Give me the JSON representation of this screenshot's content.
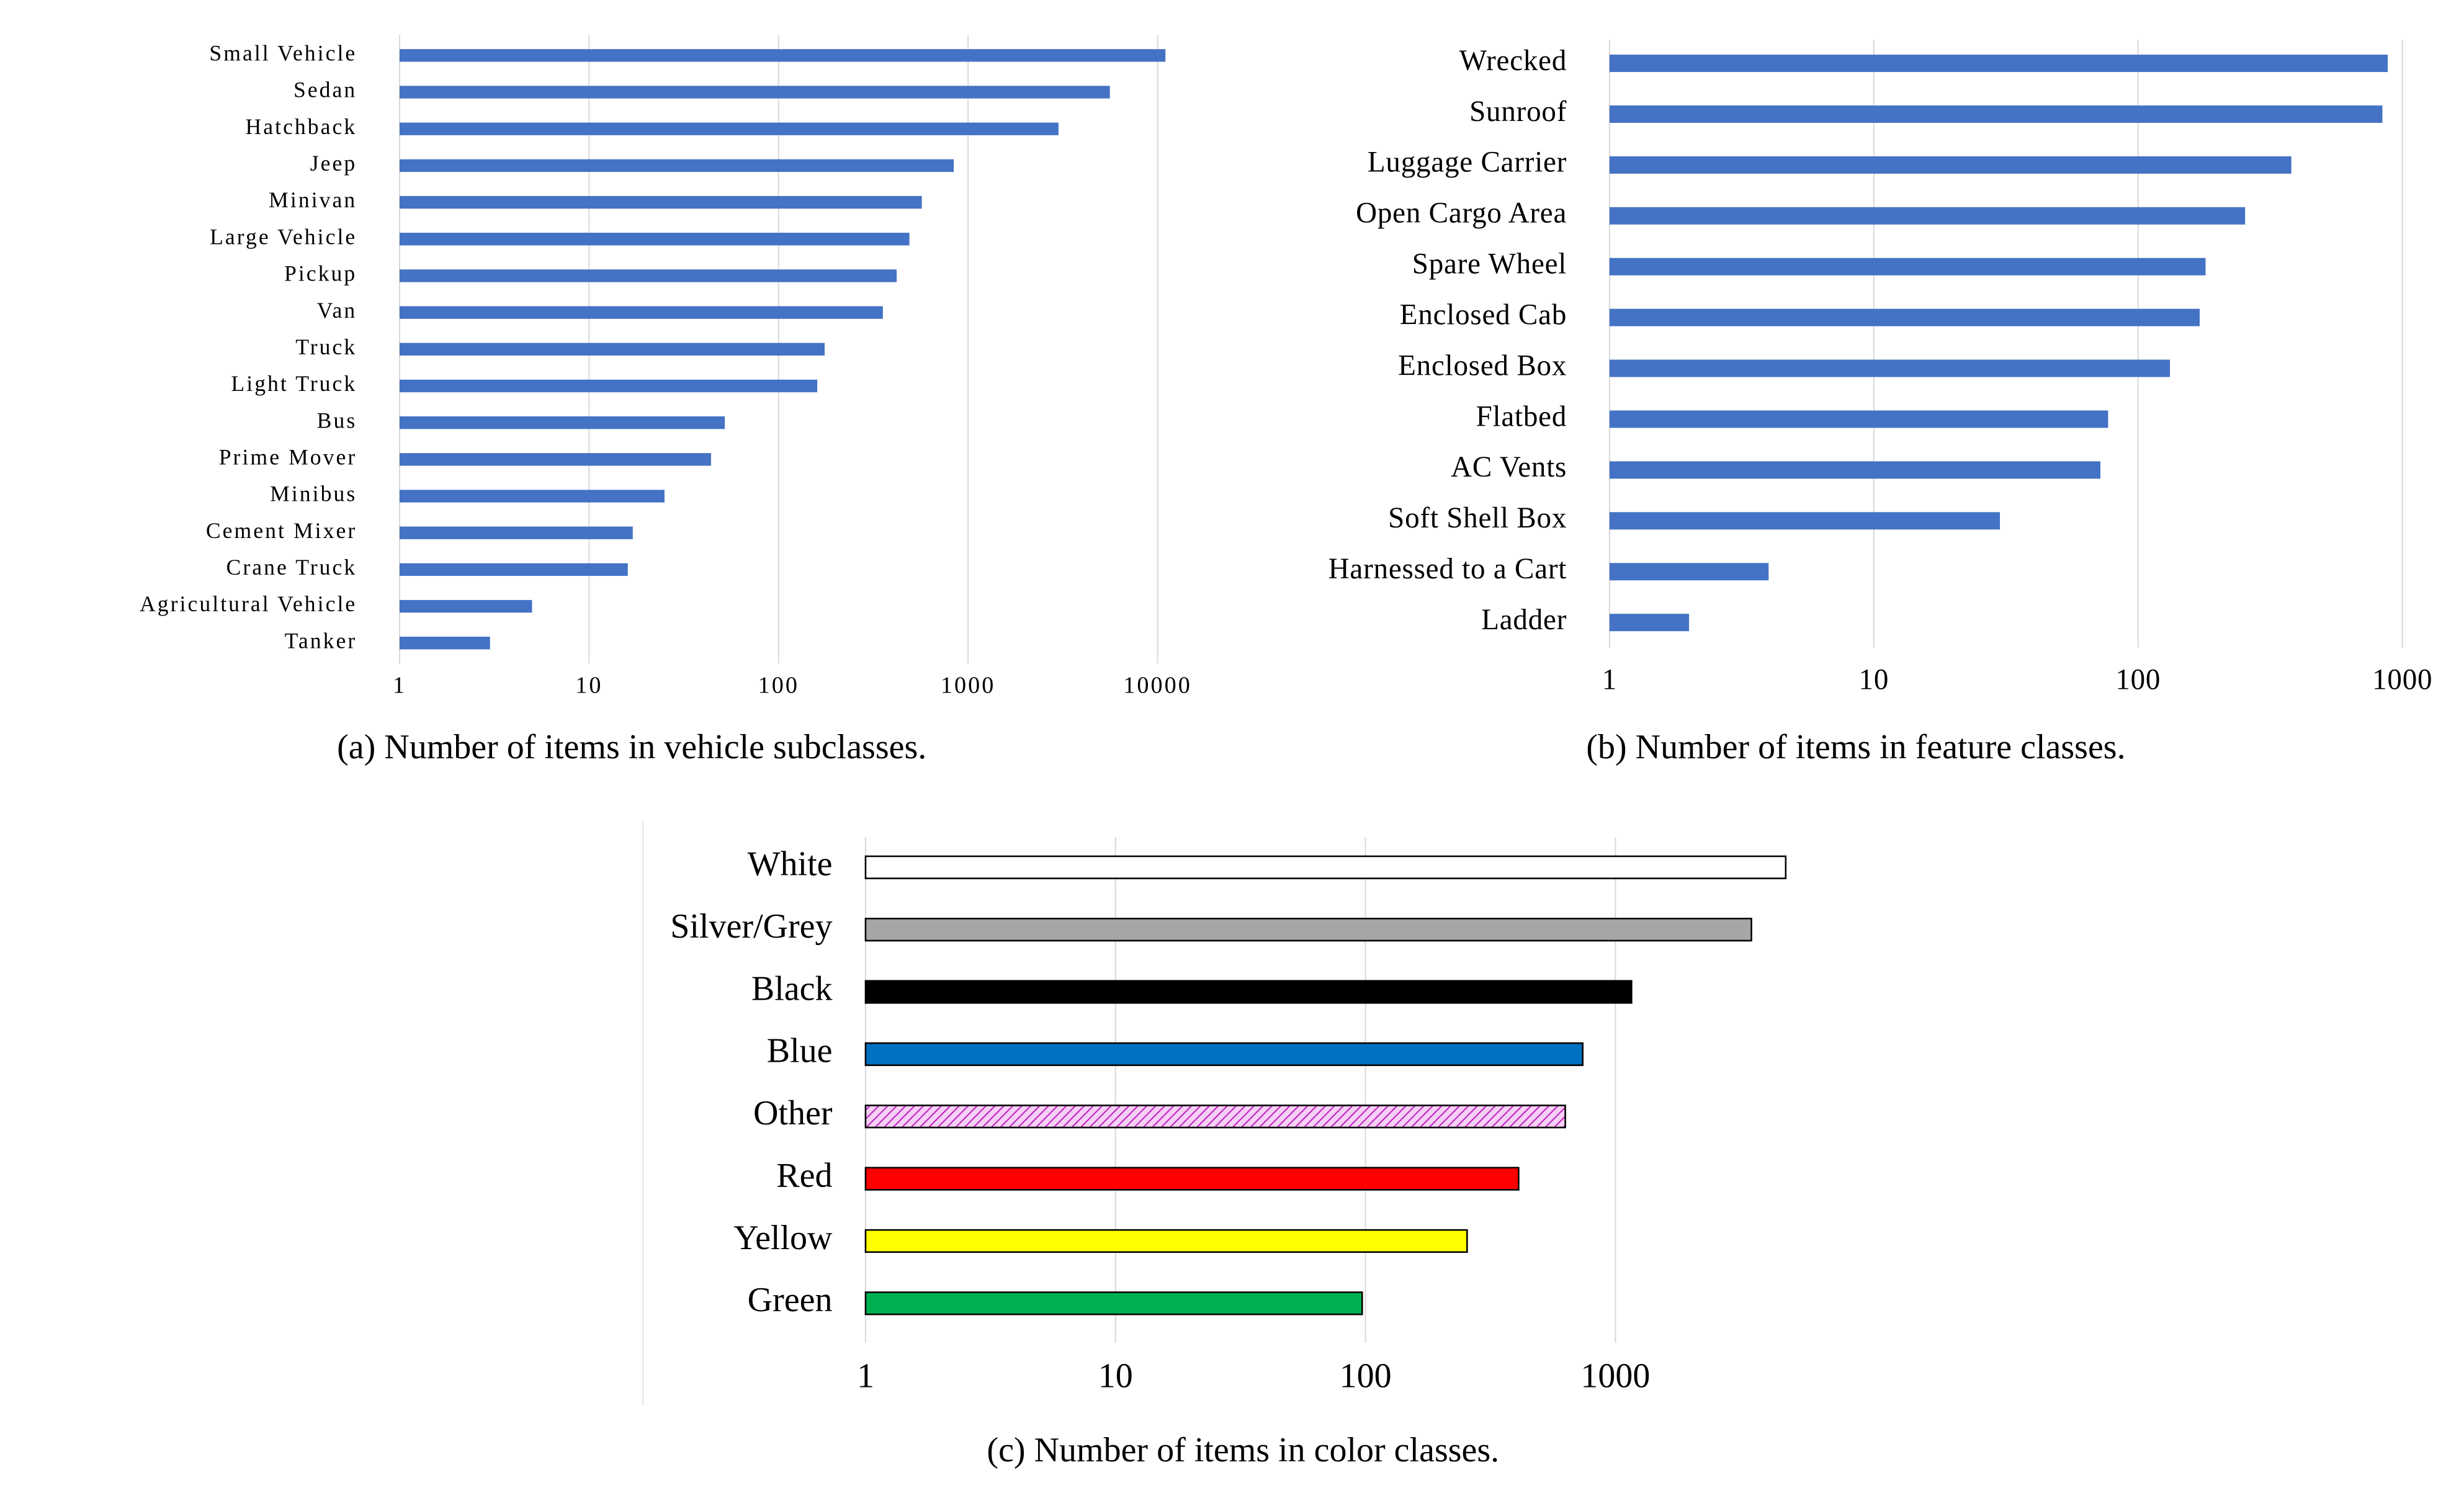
{
  "chart_data": [
    {
      "type": "bar",
      "orientation": "horizontal",
      "xscale": "log",
      "grid": true,
      "caption": "(a) Number of items in vehicle subclasses.",
      "categories": [
        "Small Vehicle",
        "Sedan",
        "Hatchback",
        "Jeep",
        "Minivan",
        "Large Vehicle",
        "Pickup",
        "Van",
        "Truck",
        "Light Truck",
        "Bus",
        "Prime Mover",
        "Minibus",
        "Cement Mixer",
        "Crane Truck",
        "Agricultural Vehicle",
        "Tanker"
      ],
      "values": [
        11000,
        5600,
        3000,
        840,
        570,
        490,
        420,
        355,
        175,
        160,
        52,
        44,
        25,
        17,
        16,
        5,
        3
      ],
      "color": "#4472c4",
      "xlim": [
        1,
        20000
      ],
      "xticks": [
        1,
        10,
        100,
        1000,
        10000
      ]
    },
    {
      "type": "bar",
      "orientation": "horizontal",
      "xscale": "log",
      "grid": true,
      "caption": "(b) Number of items in feature classes.",
      "categories": [
        "Wrecked",
        "Sunroof",
        "Luggage Carrier",
        "Open Cargo Area",
        "Spare Wheel",
        "Enclosed Cab",
        "Enclosed Box",
        "Flatbed",
        "AC Vents",
        "Soft Shell Box",
        "Harnessed to a Cart",
        "Ladder"
      ],
      "values": [
        880,
        840,
        380,
        254,
        180,
        171,
        132,
        77,
        72,
        30,
        4,
        2
      ],
      "color": "#4472c4",
      "xlim": [
        1,
        1000
      ],
      "xticks": [
        1,
        10,
        100,
        1000
      ]
    },
    {
      "type": "bar",
      "orientation": "horizontal",
      "xscale": "log",
      "grid": true,
      "caption": "(c) Number of items in color classes.",
      "categories": [
        "White",
        "Silver/Grey",
        "Black",
        "Blue",
        "Other",
        "Red",
        "Yellow",
        "Green"
      ],
      "values": [
        4800,
        3500,
        1160,
        740,
        630,
        410,
        255,
        97
      ],
      "colors": [
        "#ffffff",
        "#a6a6a6",
        "#000000",
        "#0070c0",
        "#f2b8f2",
        "#ff0000",
        "#ffff00",
        "#00b050"
      ],
      "hatched": [
        false,
        false,
        false,
        false,
        true,
        false,
        false,
        false
      ],
      "edgecolor": "#000000",
      "xlim": [
        1,
        10000
      ],
      "xticks": [
        1,
        10,
        100,
        1000
      ]
    }
  ]
}
